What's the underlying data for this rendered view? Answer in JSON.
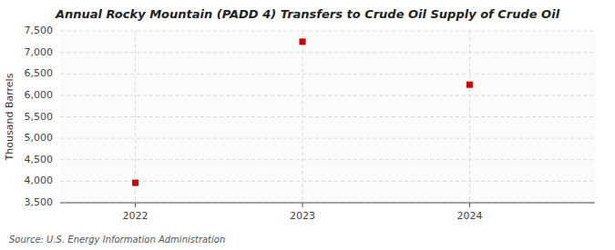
{
  "chart_data": {
    "type": "scatter",
    "title": "Annual Rocky Mountain (PADD 4) Transfers to Crude Oil Supply of Crude Oil",
    "ylabel": "Thousand Barrels",
    "source": "Source: U.S. Energy Information Administration",
    "x": [
      2022,
      2023,
      2024
    ],
    "values": [
      3964,
      7248,
      6248
    ],
    "xlim": [
      2021.55,
      2024.75
    ],
    "xticks": [
      2022,
      2023,
      2024
    ],
    "ylim": [
      3500,
      7500
    ],
    "yticks": [
      {
        "value": 3500,
        "label": "3,500"
      },
      {
        "value": 4000,
        "label": "4,000"
      },
      {
        "value": 4500,
        "label": "4,500"
      },
      {
        "value": 5000,
        "label": "5,000"
      },
      {
        "value": 5500,
        "label": "5,500"
      },
      {
        "value": 6000,
        "label": "6,000"
      },
      {
        "value": 6500,
        "label": "6,500"
      },
      {
        "value": 7000,
        "label": "7,000"
      },
      {
        "value": 7500,
        "label": "7,500"
      }
    ],
    "color": "#cc0000",
    "marker": "square",
    "grid": true
  }
}
